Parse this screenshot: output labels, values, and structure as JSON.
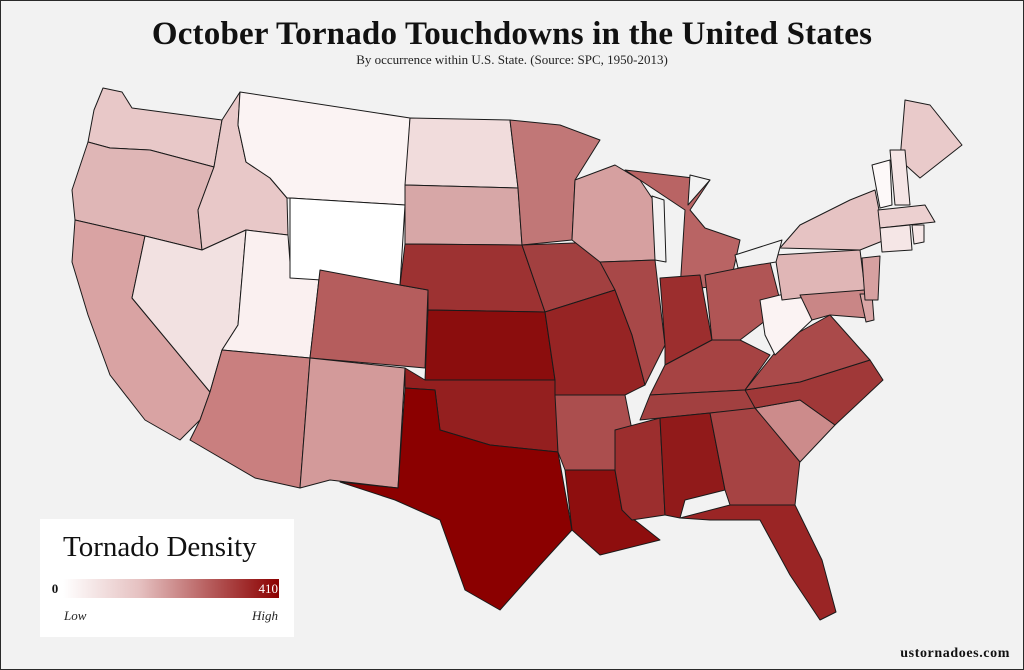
{
  "title": "October Tornado Touchdowns in the United States",
  "subtitle": "By occurrence within U.S. State. (Source: SPC, 1950-2013)",
  "legend": {
    "title": "Tornado Density",
    "min_label": "0",
    "max_label": "410",
    "low_label": "Low",
    "high_label": "High",
    "color_low": "#ffffff",
    "color_high": "#8b0000"
  },
  "credit": "ustornadoes.com",
  "map": {
    "type": "choropleth",
    "level": "state",
    "states": {
      "WA": "#e8c8c8",
      "OR": "#dfb6b6",
      "CA": "#d9a3a3",
      "ID": "#e8c8c8",
      "NV": "#f2e1e1",
      "UT": "#faf0f0",
      "AZ": "#c97f7f",
      "MT": "#fbf3f3",
      "WY": "#ffffff",
      "CO": "#b55d5d",
      "NM": "#d39a9a",
      "ND": "#f1dcdc",
      "SD": "#d7a7a7",
      "NE": "#9d3232",
      "KS": "#8b0d0d",
      "OK": "#941f1f",
      "TX": "#8b0000",
      "MN": "#c17777",
      "IA": "#a24040",
      "MO": "#962424",
      "AR": "#ab4e4e",
      "LA": "#8e0e0e",
      "WI": "#d6a0a0",
      "IL": "#a84848",
      "MS": "#9c2e2e",
      "MI": "#b96464",
      "IN": "#9c2e2e",
      "KY": "#a64343",
      "TN": "#a24040",
      "AL": "#911a1a",
      "OH": "#b05555",
      "GA": "#a64343",
      "FL": "#9a2525",
      "SC": "#cc8b8b",
      "NC": "#a03838",
      "VA": "#aa4a4a",
      "WV": "#fbf3f3",
      "PA": "#e0b6b6",
      "NY": "#e6c3c3",
      "MD": "#c98686",
      "DE": "#d9a6a6",
      "NJ": "#d6a0a0",
      "ME": "#e9caca",
      "NH": "#f5e6e6",
      "VT": "#fdf9f9",
      "MA": "#ecd0d0",
      "CT": "#f5e6e6",
      "RI": "#f5e6e6"
    }
  }
}
